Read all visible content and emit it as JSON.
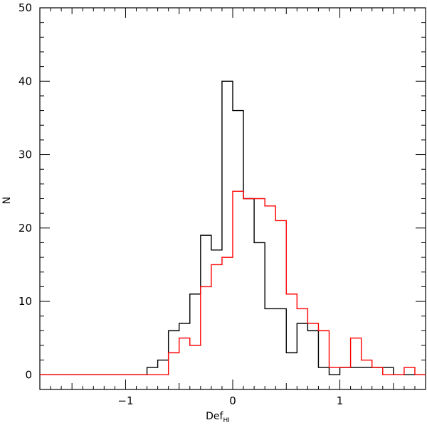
{
  "chart_data": {
    "type": "line",
    "style": "step-histogram",
    "xlabel": "Def",
    "xlabel_subscript": "HI",
    "ylabel": "N",
    "xlim": [
      -1.8,
      1.8
    ],
    "ylim": [
      -2,
      50
    ],
    "xticks": [
      -1,
      0,
      1
    ],
    "yticks": [
      0,
      10,
      20,
      30,
      40,
      50
    ],
    "bin_width": 0.1,
    "bin_start": -1.8,
    "grid": false,
    "legend": "none",
    "series": [
      {
        "color": "#000000",
        "values": [
          0,
          0,
          0,
          0,
          0,
          0,
          0,
          0,
          0,
          0,
          1,
          2,
          6,
          7,
          11,
          19,
          17,
          40,
          36,
          24,
          18,
          9,
          9,
          3,
          7,
          6,
          1,
          0,
          1,
          1,
          1,
          1,
          1,
          0,
          0,
          0
        ]
      },
      {
        "color": "#ff0000",
        "values": [
          0,
          0,
          0,
          0,
          0,
          0,
          0,
          0,
          0,
          0,
          0,
          0,
          3,
          5,
          4,
          12,
          15,
          16,
          25,
          24,
          24,
          23,
          21,
          11,
          9,
          7,
          6,
          1,
          1,
          5,
          2,
          1,
          0,
          0,
          1,
          0
        ]
      }
    ]
  }
}
